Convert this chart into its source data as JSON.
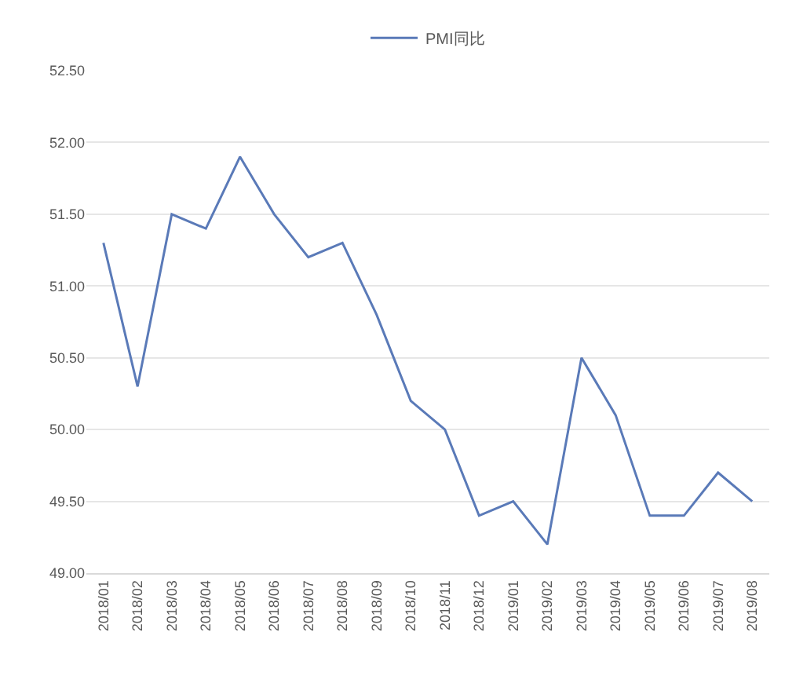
{
  "chart_data": {
    "type": "line",
    "categories": [
      "2018/01",
      "2018/02",
      "2018/03",
      "2018/04",
      "2018/05",
      "2018/06",
      "2018/07",
      "2018/08",
      "2018/09",
      "2018/10",
      "2018/11",
      "2018/12",
      "2019/01",
      "2019/02",
      "2019/03",
      "2019/04",
      "2019/05",
      "2019/06",
      "2019/07",
      "2019/08"
    ],
    "series": [
      {
        "name": "PMI同比",
        "color": "#5a7ab8",
        "values": [
          51.3,
          50.3,
          51.5,
          51.4,
          51.9,
          51.5,
          51.2,
          51.3,
          50.8,
          50.2,
          50.0,
          49.4,
          49.5,
          49.2,
          50.5,
          50.1,
          49.4,
          49.4,
          49.7,
          49.5
        ]
      }
    ],
    "ylim": [
      49,
      52.5
    ],
    "yticks": [
      {
        "value": 49,
        "label": "49.00"
      },
      {
        "value": 49.5,
        "label": "49.50"
      },
      {
        "value": 50,
        "label": "50.00"
      },
      {
        "value": 50.5,
        "label": "50.50"
      },
      {
        "value": 51,
        "label": "51.00"
      },
      {
        "value": 51.5,
        "label": "51.50"
      },
      {
        "value": 52,
        "label": "52.00"
      },
      {
        "value": 52.5,
        "label": "52.50"
      }
    ],
    "grid": "y",
    "legend": "top",
    "marker": "none",
    "line_style": "solid"
  }
}
